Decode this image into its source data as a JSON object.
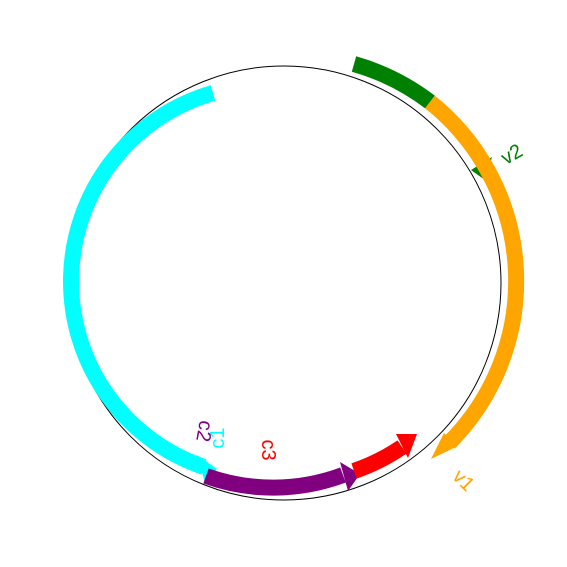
{
  "genome_map": {
    "features": [
      {
        "id": "v2",
        "label": "v2",
        "color": "#008000"
      },
      {
        "id": "v1",
        "label": "v1",
        "color": "#FFA500"
      },
      {
        "id": "c1",
        "label": "c1",
        "color": "#00FFFF"
      },
      {
        "id": "c2",
        "label": "c2",
        "color": "#800080"
      },
      {
        "id": "c3",
        "label": "c3",
        "color": "#FF0000"
      }
    ],
    "backbone_color": "#000000"
  }
}
